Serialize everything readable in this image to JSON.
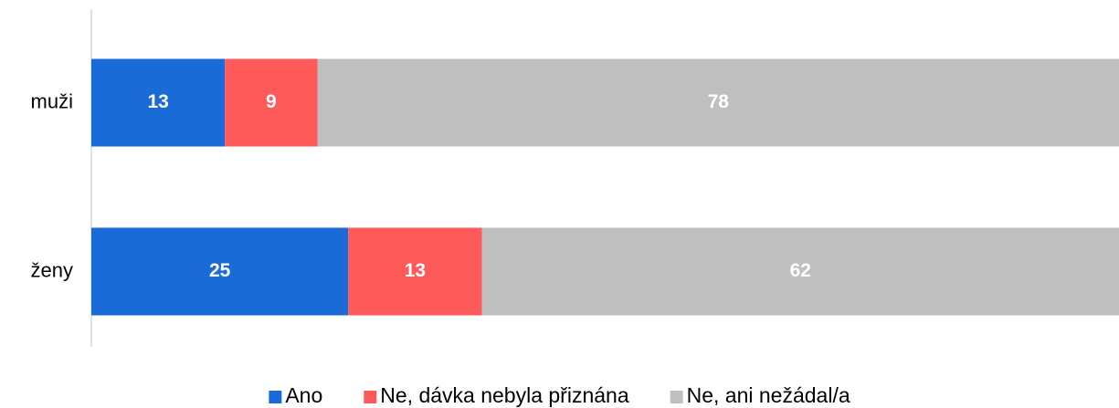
{
  "chart_data": {
    "type": "stacked-bar-horizontal",
    "categories": [
      "muži",
      "ženy"
    ],
    "series": [
      {
        "name": "Ano",
        "color": "#1a6ad8",
        "values": [
          13,
          25
        ]
      },
      {
        "name": "Ne, dávka nebyla přiznána",
        "color": "#fe5a5a",
        "values": [
          9,
          13
        ]
      },
      {
        "name": "Ne, ani nežádal/a",
        "color": "#bfbfbf",
        "values": [
          78,
          62
        ]
      }
    ],
    "xlim": [
      0,
      100
    ],
    "legend": "bottom"
  }
}
